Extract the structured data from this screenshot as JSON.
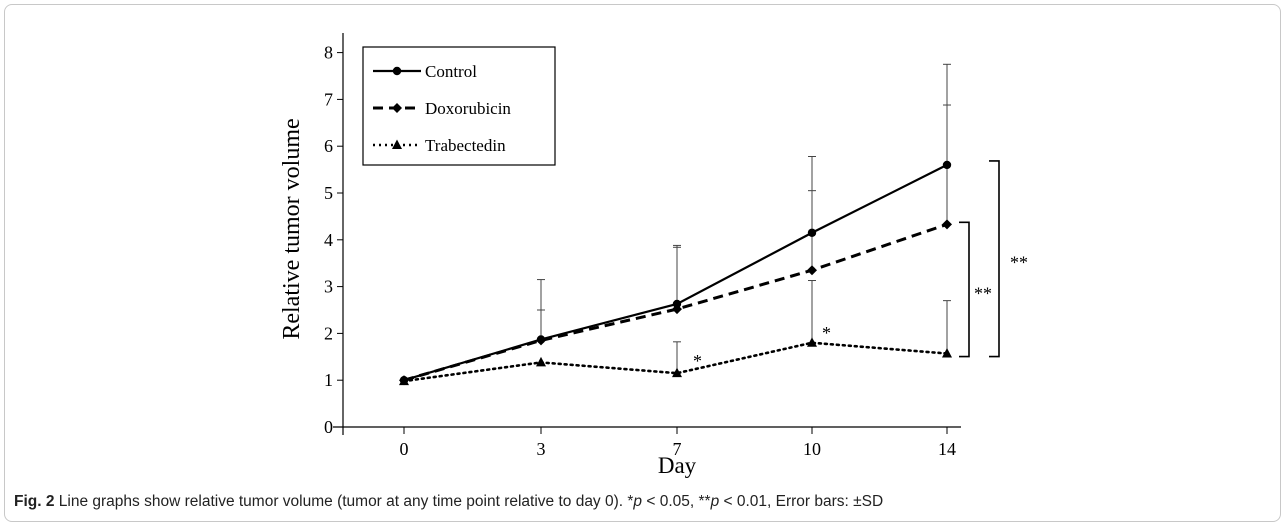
{
  "chart_data": {
    "type": "line",
    "xlabel": "Day",
    "ylabel": "Relative tumor volume",
    "x": [
      0,
      3,
      7,
      10,
      14
    ],
    "x_tick_labels": [
      "0",
      "3",
      "7",
      "10",
      "14"
    ],
    "ylim": [
      0,
      8
    ],
    "y_ticks": [
      0,
      1,
      2,
      3,
      4,
      5,
      6,
      7,
      8
    ],
    "y_tick_labels": [
      "0",
      "1",
      "2",
      "3",
      "4",
      "5",
      "6",
      "7",
      "8"
    ],
    "grid": false,
    "legend_position": "top-left",
    "series": [
      {
        "name": "Control",
        "marker": "circle",
        "dash": "solid",
        "values": [
          1.0,
          1.87,
          2.63,
          4.15,
          5.6
        ],
        "error_upper": [
          1.0,
          3.15,
          3.88,
          5.78,
          7.75
        ]
      },
      {
        "name": "Doxorubicin",
        "marker": "diamond",
        "dash": "dashed",
        "values": [
          1.0,
          1.85,
          2.52,
          3.35,
          4.33
        ],
        "error_upper": [
          1.0,
          2.5,
          3.84,
          5.05,
          6.88
        ]
      },
      {
        "name": "Trabectedin",
        "marker": "triangle",
        "dash": "dotted",
        "values": [
          0.98,
          1.38,
          1.15,
          1.8,
          1.57
        ],
        "error_upper": [
          0.98,
          1.38,
          1.82,
          3.13,
          2.7
        ]
      }
    ],
    "annotations": [
      {
        "text": "*",
        "x": 7,
        "y": 1.45
      },
      {
        "text": "*",
        "x": 10,
        "y": 2.05
      },
      {
        "text": "**",
        "from": 4.33,
        "to": 1.57,
        "x": 14
      },
      {
        "text": "**",
        "from": 5.6,
        "to": 1.57,
        "x": 14
      }
    ]
  },
  "caption": {
    "label": "Fig. 2",
    "text_before": " Line graphs show relative tumor volume (tumor at any time point relative to day 0). *",
    "p1": "p",
    "mid": " < 0.05, **",
    "p2": "p",
    "after": " < 0.01, Error bars: ±SD"
  }
}
